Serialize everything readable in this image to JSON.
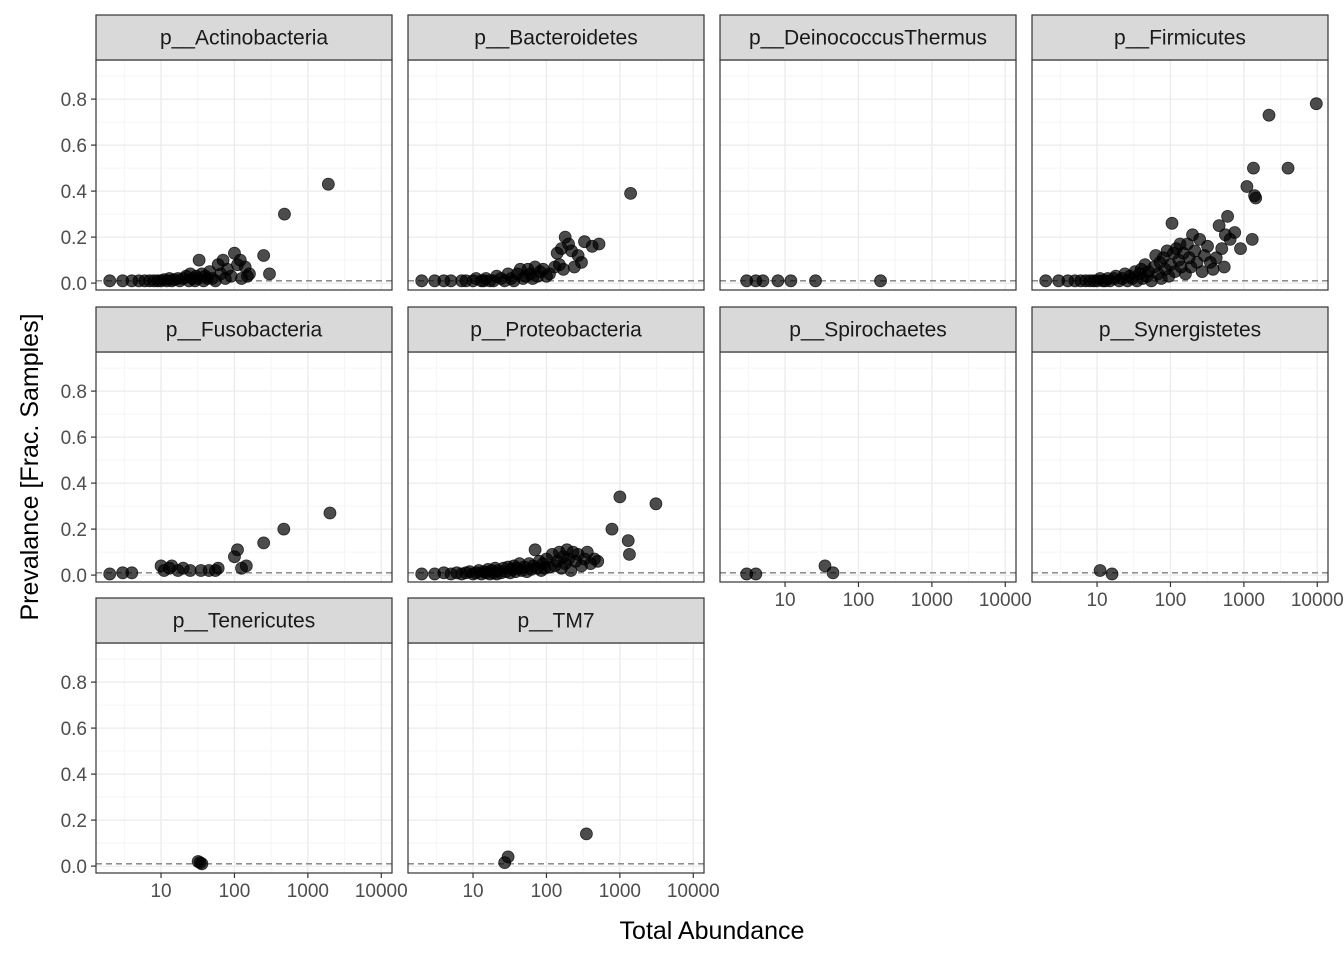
{
  "chart_data": {
    "type": "scatter",
    "xlabel": "Total Abundance",
    "ylabel": "Prevalance [Frac. Samples]",
    "x_scale": "log10",
    "xlim": [
      1.3,
      14000
    ],
    "ylim": [
      -0.03,
      0.97
    ],
    "x_ticks": [
      "10",
      "100",
      "1000",
      "10000"
    ],
    "y_ticks": [
      "0.0",
      "0.2",
      "0.4",
      "0.6",
      "0.8"
    ],
    "threshold": 0.01,
    "grid": true,
    "legend": "none",
    "colors": {
      "point": "#000000",
      "strip_fill": "#d9d9d9",
      "panel_border": "#333333",
      "grid_major": "#ebebeb",
      "grid_minor": "#f5f5f5",
      "threshold_line": "#7f7f7f"
    },
    "panels": [
      {
        "name": "p__Actinobacteria",
        "points": [
          [
            2,
            0.01
          ],
          [
            3,
            0.01
          ],
          [
            4,
            0.01
          ],
          [
            5,
            0.01
          ],
          [
            6,
            0.01
          ],
          [
            7,
            0.01
          ],
          [
            8,
            0.01
          ],
          [
            9,
            0.01
          ],
          [
            10,
            0.01
          ],
          [
            11,
            0.015
          ],
          [
            12,
            0.01
          ],
          [
            13,
            0.02
          ],
          [
            14,
            0.01
          ],
          [
            15,
            0.015
          ],
          [
            17,
            0.02
          ],
          [
            18,
            0.01
          ],
          [
            20,
            0.02
          ],
          [
            22,
            0.03
          ],
          [
            24,
            0.01
          ],
          [
            25,
            0.04
          ],
          [
            27,
            0.02
          ],
          [
            29,
            0.01
          ],
          [
            30,
            0.03
          ],
          [
            32,
            0.02
          ],
          [
            33,
            0.1
          ],
          [
            36,
            0.04
          ],
          [
            38,
            0.01
          ],
          [
            40,
            0.03
          ],
          [
            43,
            0.02
          ],
          [
            46,
            0.05
          ],
          [
            50,
            0.02
          ],
          [
            55,
            0.01
          ],
          [
            60,
            0.08
          ],
          [
            65,
            0.04
          ],
          [
            70,
            0.1
          ],
          [
            75,
            0.02
          ],
          [
            80,
            0.06
          ],
          [
            90,
            0.03
          ],
          [
            100,
            0.13
          ],
          [
            110,
            0.08
          ],
          [
            120,
            0.1
          ],
          [
            125,
            0.02
          ],
          [
            140,
            0.07
          ],
          [
            150,
            0.03
          ],
          [
            160,
            0.04
          ],
          [
            250,
            0.12
          ],
          [
            300,
            0.04
          ],
          [
            480,
            0.3
          ],
          [
            1900,
            0.43
          ]
        ]
      },
      {
        "name": "p__Bacteroidetes",
        "points": [
          [
            2,
            0.01
          ],
          [
            3,
            0.01
          ],
          [
            4,
            0.01
          ],
          [
            5,
            0.01
          ],
          [
            7,
            0.01
          ],
          [
            8,
            0.01
          ],
          [
            10,
            0.01
          ],
          [
            11,
            0.02
          ],
          [
            13,
            0.01
          ],
          [
            14,
            0.01
          ],
          [
            15,
            0.02
          ],
          [
            17,
            0.01
          ],
          [
            19,
            0.01
          ],
          [
            21,
            0.03
          ],
          [
            24,
            0.02
          ],
          [
            27,
            0.01
          ],
          [
            30,
            0.04
          ],
          [
            33,
            0.02
          ],
          [
            36,
            0.01
          ],
          [
            40,
            0.04
          ],
          [
            44,
            0.06
          ],
          [
            48,
            0.02
          ],
          [
            52,
            0.03
          ],
          [
            56,
            0.06
          ],
          [
            60,
            0.04
          ],
          [
            65,
            0.02
          ],
          [
            70,
            0.07
          ],
          [
            76,
            0.03
          ],
          [
            82,
            0.05
          ],
          [
            90,
            0.06
          ],
          [
            100,
            0.03
          ],
          [
            110,
            0.04
          ],
          [
            130,
            0.07
          ],
          [
            140,
            0.13
          ],
          [
            150,
            0.08
          ],
          [
            160,
            0.15
          ],
          [
            170,
            0.06
          ],
          [
            180,
            0.2
          ],
          [
            200,
            0.17
          ],
          [
            220,
            0.14
          ],
          [
            240,
            0.07
          ],
          [
            270,
            0.12
          ],
          [
            300,
            0.09
          ],
          [
            330,
            0.18
          ],
          [
            420,
            0.16
          ],
          [
            520,
            0.17
          ],
          [
            1400,
            0.39
          ]
        ]
      },
      {
        "name": "p__DeinococcusThermus",
        "points": [
          [
            3,
            0.01
          ],
          [
            4,
            0.01
          ],
          [
            5,
            0.01
          ],
          [
            8,
            0.01
          ],
          [
            12,
            0.01
          ],
          [
            26,
            0.01
          ],
          [
            200,
            0.01
          ]
        ]
      },
      {
        "name": "p__Firmicutes",
        "points": [
          [
            2,
            0.01
          ],
          [
            3,
            0.01
          ],
          [
            4,
            0.01
          ],
          [
            5,
            0.01
          ],
          [
            6,
            0.01
          ],
          [
            7,
            0.01
          ],
          [
            8,
            0.01
          ],
          [
            9,
            0.01
          ],
          [
            10,
            0.01
          ],
          [
            11,
            0.02
          ],
          [
            12,
            0.01
          ],
          [
            13,
            0.01
          ],
          [
            14,
            0.02
          ],
          [
            15,
            0.01
          ],
          [
            17,
            0.02
          ],
          [
            18,
            0.03
          ],
          [
            20,
            0.01
          ],
          [
            22,
            0.02
          ],
          [
            24,
            0.04
          ],
          [
            26,
            0.01
          ],
          [
            28,
            0.03
          ],
          [
            30,
            0.02
          ],
          [
            33,
            0.05
          ],
          [
            35,
            0.01
          ],
          [
            38,
            0.04
          ],
          [
            40,
            0.06
          ],
          [
            42,
            0.02
          ],
          [
            45,
            0.08
          ],
          [
            48,
            0.03
          ],
          [
            50,
            0.05
          ],
          [
            55,
            0.01
          ],
          [
            60,
            0.07
          ],
          [
            63,
            0.12
          ],
          [
            68,
            0.04
          ],
          [
            72,
            0.09
          ],
          [
            75,
            0.02
          ],
          [
            80,
            0.11
          ],
          [
            85,
            0.06
          ],
          [
            90,
            0.14
          ],
          [
            95,
            0.03
          ],
          [
            100,
            0.08
          ],
          [
            105,
            0.26
          ],
          [
            110,
            0.13
          ],
          [
            115,
            0.05
          ],
          [
            120,
            0.15
          ],
          [
            130,
            0.1
          ],
          [
            135,
            0.17
          ],
          [
            140,
            0.07
          ],
          [
            150,
            0.13
          ],
          [
            160,
            0.04
          ],
          [
            170,
            0.17
          ],
          [
            180,
            0.11
          ],
          [
            190,
            0.07
          ],
          [
            200,
            0.21
          ],
          [
            215,
            0.14
          ],
          [
            230,
            0.09
          ],
          [
            250,
            0.19
          ],
          [
            270,
            0.05
          ],
          [
            290,
            0.12
          ],
          [
            320,
            0.16
          ],
          [
            350,
            0.09
          ],
          [
            380,
            0.06
          ],
          [
            420,
            0.11
          ],
          [
            460,
            0.25
          ],
          [
            500,
            0.15
          ],
          [
            540,
            0.07
          ],
          [
            560,
            0.21
          ],
          [
            600,
            0.29
          ],
          [
            650,
            0.19
          ],
          [
            750,
            0.22
          ],
          [
            900,
            0.15
          ],
          [
            1100,
            0.42
          ],
          [
            1300,
            0.19
          ],
          [
            1350,
            0.5
          ],
          [
            1400,
            0.38
          ],
          [
            1450,
            0.37
          ],
          [
            2200,
            0.73
          ],
          [
            4000,
            0.5
          ],
          [
            9700,
            0.78
          ]
        ]
      },
      {
        "name": "p__Fusobacteria",
        "points": [
          [
            2,
            0.005
          ],
          [
            3,
            0.01
          ],
          [
            4,
            0.01
          ],
          [
            10,
            0.04
          ],
          [
            11,
            0.02
          ],
          [
            13,
            0.03
          ],
          [
            14,
            0.04
          ],
          [
            17,
            0.02
          ],
          [
            20,
            0.03
          ],
          [
            25,
            0.02
          ],
          [
            35,
            0.02
          ],
          [
            45,
            0.02
          ],
          [
            55,
            0.02
          ],
          [
            60,
            0.03
          ],
          [
            100,
            0.08
          ],
          [
            110,
            0.11
          ],
          [
            125,
            0.03
          ],
          [
            145,
            0.04
          ],
          [
            250,
            0.14
          ],
          [
            470,
            0.2
          ],
          [
            2000,
            0.27
          ]
        ]
      },
      {
        "name": "p__Proteobacteria",
        "points": [
          [
            2,
            0.005
          ],
          [
            3,
            0.005
          ],
          [
            4,
            0.01
          ],
          [
            5,
            0.005
          ],
          [
            6,
            0.01
          ],
          [
            7,
            0.005
          ],
          [
            8,
            0.01
          ],
          [
            9,
            0.015
          ],
          [
            10,
            0.005
          ],
          [
            11,
            0.01
          ],
          [
            12,
            0.02
          ],
          [
            13,
            0.005
          ],
          [
            14,
            0.015
          ],
          [
            15,
            0.01
          ],
          [
            16,
            0.025
          ],
          [
            17,
            0.005
          ],
          [
            18,
            0.02
          ],
          [
            19,
            0.01
          ],
          [
            20,
            0.03
          ],
          [
            21,
            0.005
          ],
          [
            22,
            0.02
          ],
          [
            24,
            0.01
          ],
          [
            26,
            0.03
          ],
          [
            28,
            0.015
          ],
          [
            30,
            0.035
          ],
          [
            32,
            0.01
          ],
          [
            34,
            0.025
          ],
          [
            36,
            0.04
          ],
          [
            38,
            0.015
          ],
          [
            40,
            0.03
          ],
          [
            43,
            0.05
          ],
          [
            46,
            0.02
          ],
          [
            50,
            0.035
          ],
          [
            54,
            0.015
          ],
          [
            58,
            0.05
          ],
          [
            62,
            0.025
          ],
          [
            66,
            0.04
          ],
          [
            70,
            0.11
          ],
          [
            75,
            0.03
          ],
          [
            80,
            0.06
          ],
          [
            85,
            0.02
          ],
          [
            90,
            0.05
          ],
          [
            95,
            0.03
          ],
          [
            100,
            0.07
          ],
          [
            110,
            0.035
          ],
          [
            120,
            0.09
          ],
          [
            130,
            0.04
          ],
          [
            140,
            0.06
          ],
          [
            150,
            0.1
          ],
          [
            160,
            0.03
          ],
          [
            170,
            0.08
          ],
          [
            180,
            0.05
          ],
          [
            190,
            0.11
          ],
          [
            200,
            0.07
          ],
          [
            215,
            0.02
          ],
          [
            230,
            0.1
          ],
          [
            250,
            0.06
          ],
          [
            270,
            0.09
          ],
          [
            300,
            0.04
          ],
          [
            330,
            0.07
          ],
          [
            360,
            0.1
          ],
          [
            400,
            0.05
          ],
          [
            450,
            0.07
          ],
          [
            500,
            0.06
          ],
          [
            780,
            0.2
          ],
          [
            1000,
            0.34
          ],
          [
            1300,
            0.15
          ],
          [
            1350,
            0.09
          ],
          [
            3100,
            0.31
          ]
        ]
      },
      {
        "name": "p__Spirochaetes",
        "points": [
          [
            3,
            0.005
          ],
          [
            4,
            0.005
          ],
          [
            35,
            0.04
          ],
          [
            45,
            0.01
          ]
        ]
      },
      {
        "name": "p__Synergistetes",
        "points": [
          [
            11,
            0.02
          ],
          [
            16,
            0.005
          ]
        ]
      },
      {
        "name": "p__Tenericutes",
        "points": [
          [
            32,
            0.02
          ],
          [
            34,
            0.015
          ],
          [
            36,
            0.01
          ]
        ]
      },
      {
        "name": "p__TM7",
        "points": [
          [
            27,
            0.015
          ],
          [
            30,
            0.04
          ],
          [
            350,
            0.14
          ]
        ]
      }
    ]
  }
}
